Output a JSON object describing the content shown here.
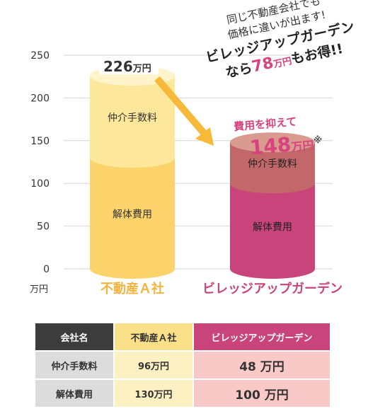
{
  "chart_data": {
    "type": "bar",
    "stacked": true,
    "yaxis": {
      "ticks": [
        0,
        50,
        100,
        150,
        200,
        250
      ],
      "unit_label": "万円",
      "ylim": [
        0,
        250
      ]
    },
    "categories": [
      "不動産Ａ社",
      "ビレッジアップガーデン"
    ],
    "category_colors": [
      "#f6b23b",
      "#c8447a"
    ],
    "series": [
      {
        "name": "解体費用",
        "values": [
          130,
          100
        ]
      },
      {
        "name": "仲介手数料",
        "values": [
          96,
          48
        ]
      }
    ],
    "totals": [
      226,
      148
    ],
    "colors": {
      "a_bottom": "#fcd36b",
      "a_top": "#fde79b",
      "v_bottom": "#c8447a",
      "v_top": "#c2686a"
    },
    "annotations": {
      "total_a": {
        "number": "226",
        "unit": "万円"
      },
      "arrow_color": "#f7b93a",
      "reduce": {
        "line1": "費用を抑えて",
        "number": "148",
        "unit": "万円",
        "mark": "※"
      }
    }
  },
  "callout": {
    "line1": "同じ不動産会社でも",
    "line2": "価格に違いが出ます!",
    "line3": "ビレッジアップガーデン",
    "line4_pre": "なら",
    "line4_num": "78",
    "line4_unit": "万円",
    "line4_post": "もお得!!"
  },
  "table": {
    "headers": [
      "会社名",
      "不動産Ａ社",
      "ビレッジアップガーデン"
    ],
    "rows": [
      {
        "label": "仲介手数料",
        "a": "96万円",
        "v": "48 万円"
      },
      {
        "label": "解体費用",
        "a": "130万円",
        "v": "100 万円"
      }
    ]
  }
}
